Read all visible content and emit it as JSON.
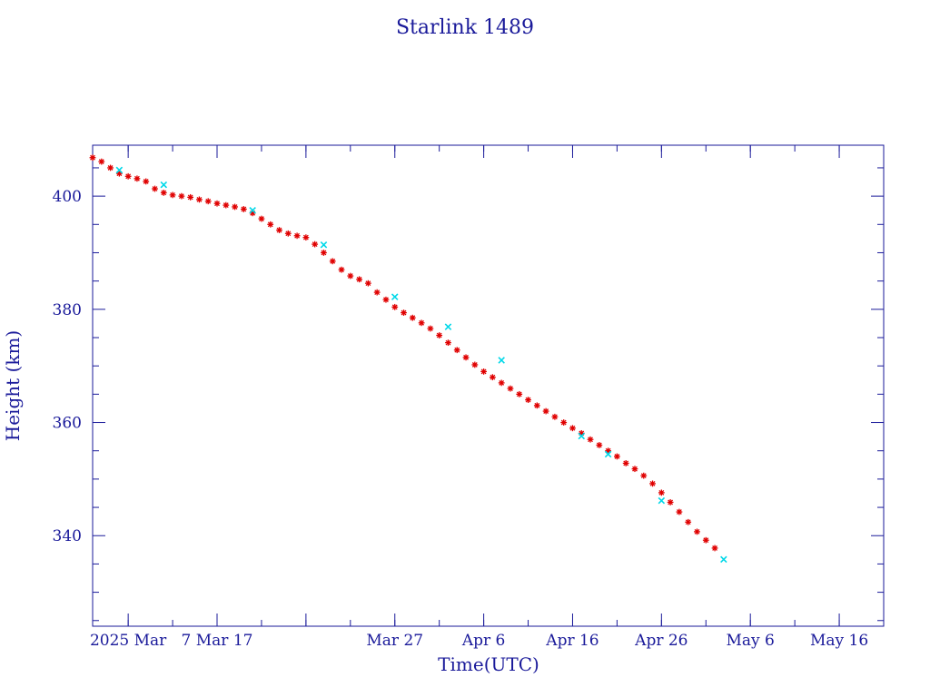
{
  "chart_data": {
    "type": "scatter",
    "title": "Starlink 1489",
    "xlabel": "Time(UTC)",
    "ylabel": "Height (km)",
    "x_unit": "date",
    "xlim": [
      "2025-02-21",
      "2025-05-21"
    ],
    "ylim": [
      324,
      409
    ],
    "x_ticks": [
      {
        "date": "2025-02-25",
        "label": "2025 Mar"
      },
      {
        "date": "2025-03-07",
        "label": "7 Mar 17"
      },
      {
        "date": "2025-03-17",
        "label": ""
      },
      {
        "date": "2025-03-27",
        "label": "Mar 27"
      },
      {
        "date": "2025-04-06",
        "label": "Apr  6"
      },
      {
        "date": "2025-04-16",
        "label": "Apr 16"
      },
      {
        "date": "2025-04-26",
        "label": "Apr 26"
      },
      {
        "date": "2025-05-06",
        "label": "May  6"
      },
      {
        "date": "2025-05-16",
        "label": "May 16"
      }
    ],
    "y_ticks": [
      340,
      360,
      380,
      400
    ],
    "y_minor_step": 5,
    "x_minor_step_days": 5,
    "grid": false,
    "legend": "none",
    "series": [
      {
        "marker": "star",
        "color": "#e00000",
        "x": [
          "2025-02-21",
          "2025-02-22",
          "2025-02-23",
          "2025-02-24",
          "2025-02-25",
          "2025-02-26",
          "2025-02-27",
          "2025-02-28",
          "2025-03-01",
          "2025-03-02",
          "2025-03-03",
          "2025-03-04",
          "2025-03-05",
          "2025-03-06",
          "2025-03-07",
          "2025-03-08",
          "2025-03-09",
          "2025-03-10",
          "2025-03-11",
          "2025-03-12",
          "2025-03-13",
          "2025-03-14",
          "2025-03-15",
          "2025-03-16",
          "2025-03-17",
          "2025-03-18",
          "2025-03-19",
          "2025-03-20",
          "2025-03-21",
          "2025-03-22",
          "2025-03-23",
          "2025-03-24",
          "2025-03-25",
          "2025-03-26",
          "2025-03-27",
          "2025-03-28",
          "2025-03-29",
          "2025-03-30",
          "2025-03-31",
          "2025-04-01",
          "2025-04-02",
          "2025-04-03",
          "2025-04-04",
          "2025-04-05",
          "2025-04-06",
          "2025-04-07",
          "2025-04-08",
          "2025-04-09",
          "2025-04-10",
          "2025-04-11",
          "2025-04-12",
          "2025-04-13",
          "2025-04-14",
          "2025-04-15",
          "2025-04-16",
          "2025-04-17",
          "2025-04-18",
          "2025-04-19",
          "2025-04-20",
          "2025-04-21",
          "2025-04-22",
          "2025-04-23",
          "2025-04-24",
          "2025-04-25",
          "2025-04-26",
          "2025-04-27",
          "2025-04-28",
          "2025-04-29",
          "2025-04-30",
          "2025-05-01",
          "2025-05-02"
        ],
        "y": [
          406.8,
          406.1,
          405.0,
          404.0,
          403.5,
          403.1,
          402.6,
          401.3,
          400.6,
          400.2,
          400.0,
          399.8,
          399.4,
          399.1,
          398.7,
          398.4,
          398.1,
          397.7,
          397.0,
          396.0,
          395.0,
          394.0,
          393.4,
          393.0,
          392.7,
          391.5,
          390.0,
          388.5,
          387.0,
          385.9,
          385.3,
          384.6,
          383.0,
          381.7,
          380.4,
          379.4,
          378.5,
          377.6,
          376.6,
          375.4,
          374.1,
          372.8,
          371.5,
          370.2,
          369.0,
          368.0,
          367.0,
          366.0,
          365.0,
          364.0,
          363.0,
          362.0,
          361.0,
          360.0,
          359.0,
          358.1,
          357.0,
          356.0,
          355.0,
          354.0,
          352.8,
          351.8,
          350.6,
          349.2,
          347.6,
          345.9,
          344.2,
          342.4,
          340.7,
          339.2,
          337.8
        ]
      },
      {
        "marker": "cross",
        "color": "#00d8e8",
        "x": [
          "2025-02-24",
          "2025-03-01",
          "2025-03-11",
          "2025-03-19",
          "2025-03-27",
          "2025-04-02",
          "2025-04-08",
          "2025-04-17",
          "2025-04-20",
          "2025-04-26",
          "2025-05-03"
        ],
        "y": [
          404.6,
          402.0,
          397.5,
          391.4,
          382.2,
          376.9,
          371.0,
          357.6,
          354.4,
          346.2,
          335.8
        ]
      }
    ]
  }
}
